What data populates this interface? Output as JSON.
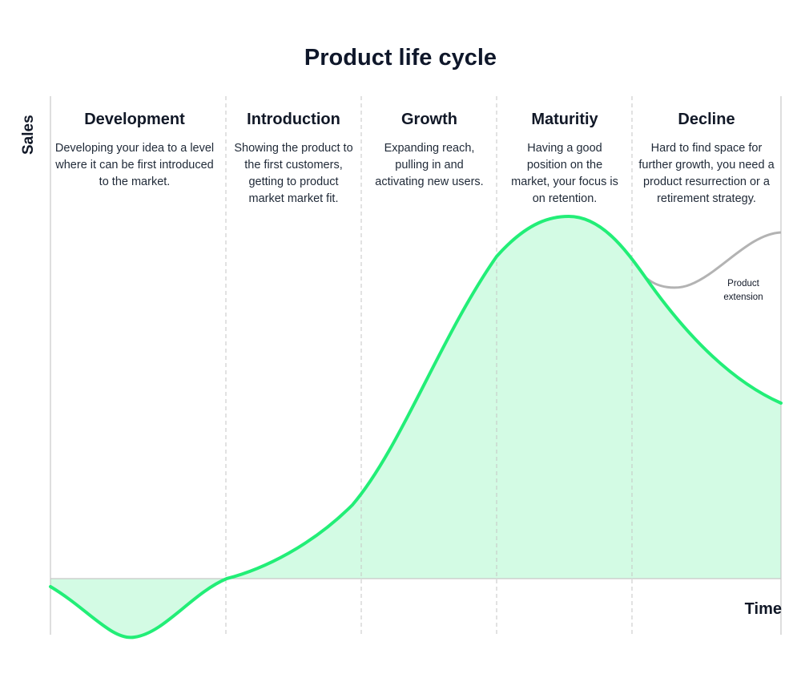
{
  "title": "Product life cycle",
  "axes": {
    "y_label": "Sales",
    "x_label": "Time"
  },
  "phases": [
    {
      "name": "Development",
      "description": "Developing your idea to a level where it can be first introduced to the market."
    },
    {
      "name": "Introduction",
      "description": "Showing the product to the first customers, getting to product market market fit."
    },
    {
      "name": "Growth",
      "description": "Expanding reach, pulling in and activating new users."
    },
    {
      "name": "Maturitiy",
      "description": "Having a good position on the market, your focus is on retention."
    },
    {
      "name": "Decline",
      "description": "Hard to find space for further growth, you need a product resurrection or a retirement strategy."
    }
  ],
  "extension_label": "Product extension",
  "colors": {
    "curve": "#22ee77",
    "fill": "#d3fbe4",
    "extension": "#b3b3b3",
    "divider": "#c4c4c4",
    "axis": "#bdbdbd"
  }
}
